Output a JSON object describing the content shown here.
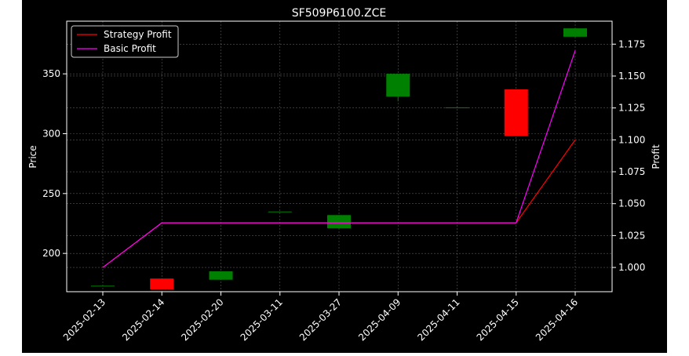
{
  "chart_data": {
    "type": "candlestick",
    "title": "SF509P6100.ZCE",
    "ylabel": "Price",
    "y2label": "Profit",
    "categories": [
      "2025-02-13",
      "2025-02-14",
      "2025-02-20",
      "2025-03-11",
      "2025-03-27",
      "2025-04-09",
      "2025-04-11",
      "2025-04-15",
      "2025-04-16"
    ],
    "ohlc": [
      {
        "open": 173,
        "high": 173,
        "low": 173,
        "close": 173
      },
      {
        "open": 179,
        "high": 179,
        "low": 170,
        "close": 170
      },
      {
        "open": 178,
        "high": 185,
        "low": 178,
        "close": 185
      },
      {
        "open": 235,
        "high": 235,
        "low": 235,
        "close": 235
      },
      {
        "open": 221,
        "high": 232,
        "low": 221,
        "close": 232
      },
      {
        "open": 331,
        "high": 350,
        "low": 327,
        "close": 350
      },
      {
        "open": 322,
        "high": 322,
        "low": 322,
        "close": 322
      },
      {
        "open": 337,
        "high": 337,
        "low": 298,
        "close": 298
      },
      {
        "open": 381,
        "high": 388,
        "low": 381,
        "close": 388
      }
    ],
    "ylim": [
      168,
      394
    ],
    "yticks": [
      200,
      250,
      300,
      350
    ],
    "y2lim": [
      0.981,
      1.193
    ],
    "y2ticks": [
      "1.000",
      "1.025",
      "1.050",
      "1.075",
      "1.100",
      "1.125",
      "1.150",
      "1.175"
    ],
    "series": [
      {
        "name": "Strategy Profit",
        "axis": "right",
        "color": "#ff0000",
        "values": [
          1.0,
          1.035,
          1.035,
          1.035,
          1.035,
          1.035,
          1.035,
          1.035,
          1.1
        ]
      },
      {
        "name": "Basic Profit",
        "axis": "right",
        "color": "#ff00ff",
        "values": [
          1.0,
          1.035,
          1.035,
          1.035,
          1.035,
          1.035,
          1.035,
          1.035,
          1.17
        ]
      }
    ],
    "colors": {
      "up": "#008000",
      "down": "#ff0000",
      "background": "#000000",
      "axes": "#ffffff",
      "grid": "#808080"
    },
    "grid": true,
    "legend": "top-left"
  }
}
